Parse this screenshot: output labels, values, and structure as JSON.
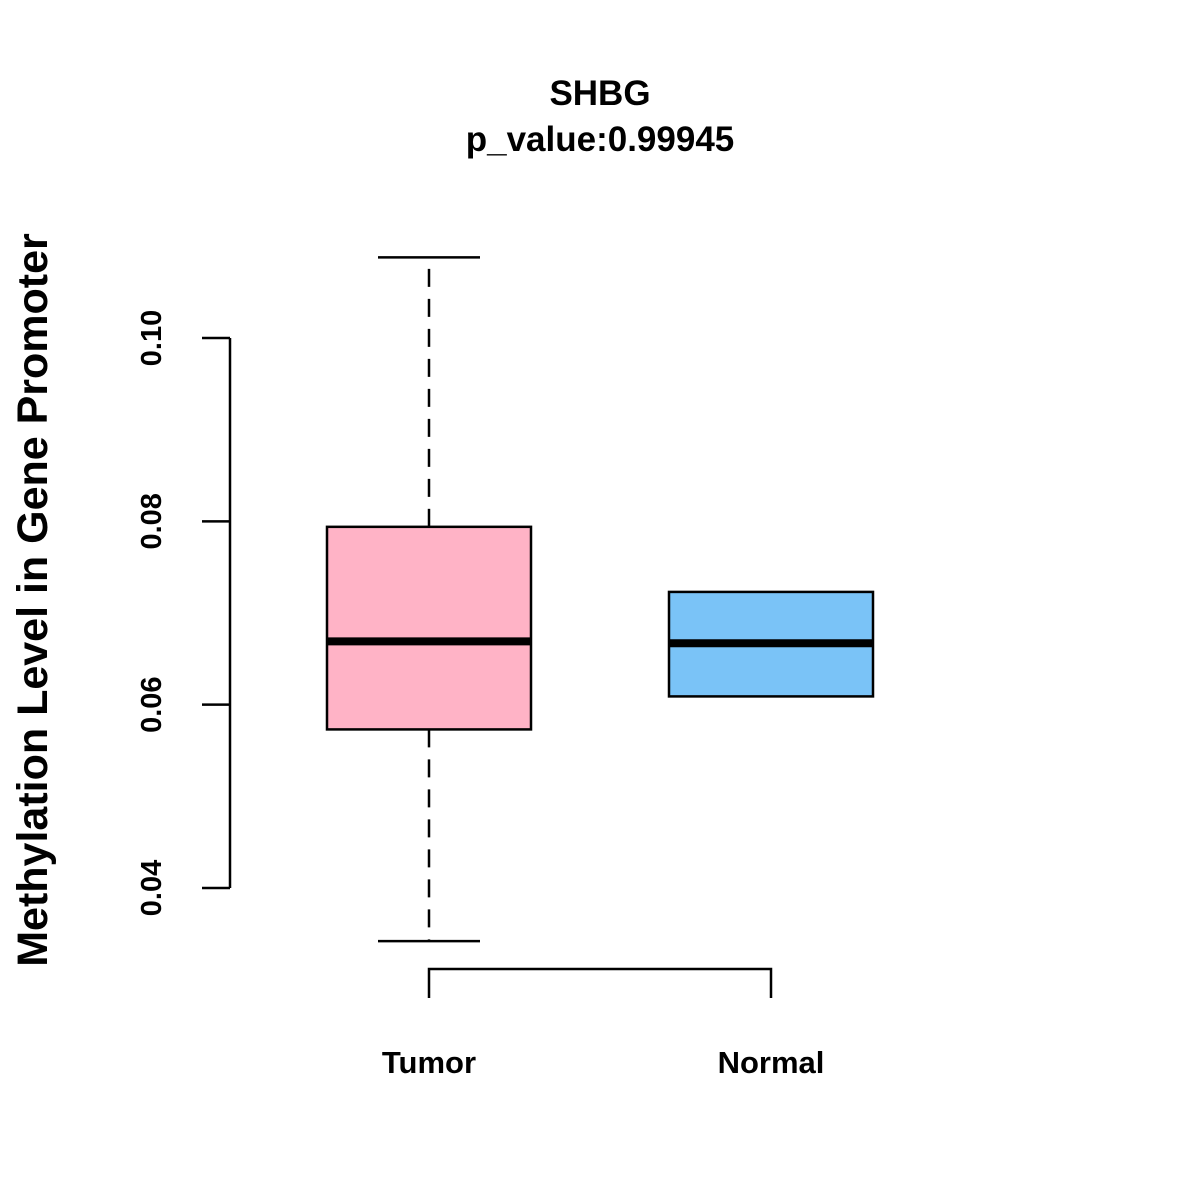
{
  "chart_data": {
    "type": "boxplot",
    "title": "SHBG",
    "subtitle": "p_value:0.99945",
    "xlabel": "",
    "ylabel": "Methylation Level in Gene Promoter",
    "ylim": [
      0.04,
      0.1
    ],
    "yticks": [
      0.04,
      0.06,
      0.08,
      0.1
    ],
    "ytick_labels": [
      "0.04",
      "0.06",
      "0.08",
      "0.10"
    ],
    "grid": false,
    "legend": "none",
    "categories": [
      "Tumor",
      "Normal"
    ],
    "boxes": [
      {
        "name": "Tumor",
        "whisker_low": 0.0342,
        "q1": 0.0573,
        "median": 0.0669,
        "q3": 0.0794,
        "whisker_high": 0.1088,
        "color": "#FFB3C6"
      },
      {
        "name": "Normal",
        "whisker_low": 0.0609,
        "q1": 0.0609,
        "median": 0.0667,
        "q3": 0.0723,
        "whisker_high": 0.0723,
        "color": "#7AC3F7"
      }
    ]
  }
}
